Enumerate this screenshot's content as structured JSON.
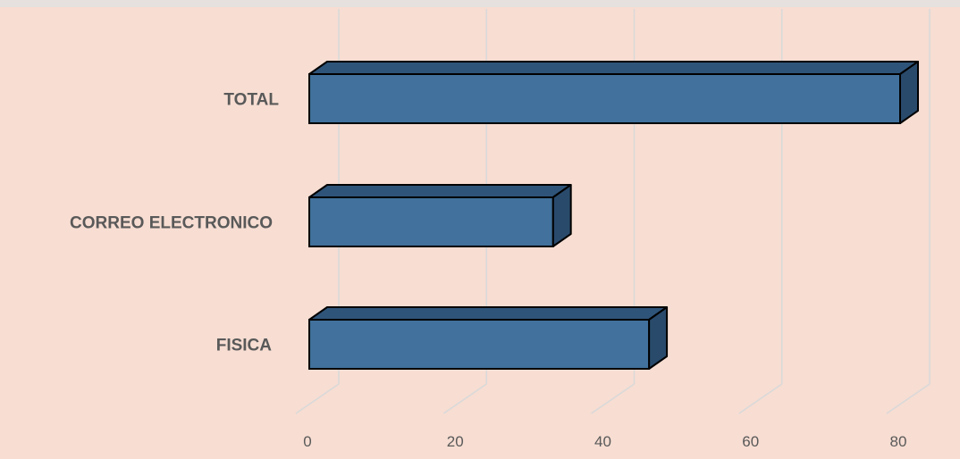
{
  "chart_data": {
    "type": "bar",
    "orientation": "horizontal",
    "style": "3d",
    "categories": [
      "TOTAL",
      "CORREO ELECTRONICO",
      "FISICA"
    ],
    "values": [
      80,
      33,
      46
    ],
    "xlim": [
      0,
      80
    ],
    "xticks": [
      "0",
      "20",
      "40",
      "60",
      "80"
    ],
    "grid": true,
    "legend": "none",
    "colors": {
      "plot_background": "#f7ddd2",
      "outer_background": "#e6e1de",
      "bar_front": "#41719c",
      "bar_top": "#2f5479",
      "bar_side": "#294a6b",
      "gridline": "#d9d9d9",
      "label": "#595959"
    }
  }
}
